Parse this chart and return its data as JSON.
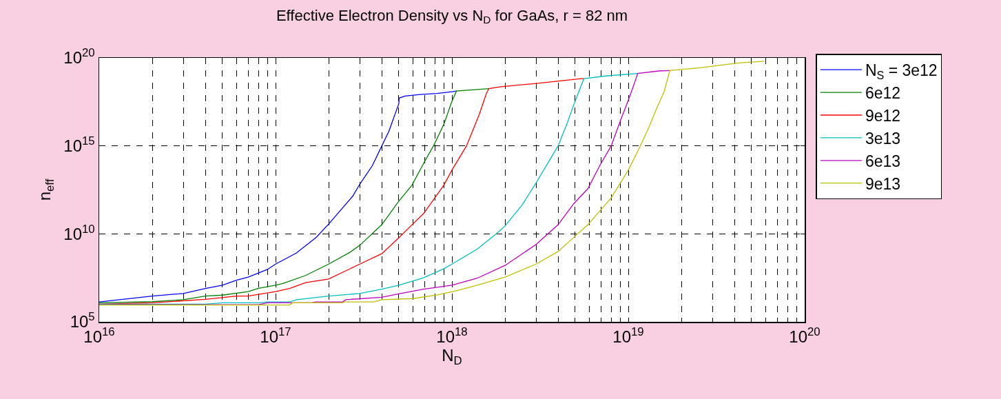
{
  "chart_data": {
    "type": "line",
    "title": "Effective Electron Density vs N$_{D}$ for GaAs, r = 82 nm",
    "xlabel": "N$_{D}$",
    "ylabel": "n$_{eff}$",
    "log": "xy",
    "grid": true,
    "legend": "right",
    "line_style": "solid",
    "marker": "none",
    "xlim": [
      1e+16,
      1e+20
    ],
    "ylim": [
      100000.0,
      1e+20
    ],
    "xticks": [
      {
        "value": 1e+16,
        "label": "10$^{16}$"
      },
      {
        "value": 2e+16,
        "label": null
      },
      {
        "value": 3e+16,
        "label": null
      },
      {
        "value": 4e+16,
        "label": null
      },
      {
        "value": 5e+16,
        "label": null
      },
      {
        "value": 6e+16,
        "label": null
      },
      {
        "value": 7e+16,
        "label": null
      },
      {
        "value": 8e+16,
        "label": null
      },
      {
        "value": 9e+16,
        "label": null
      },
      {
        "value": 1e+17,
        "label": "10$^{17}$"
      },
      {
        "value": 2e+17,
        "label": null
      },
      {
        "value": 3e+17,
        "label": null
      },
      {
        "value": 4e+17,
        "label": null
      },
      {
        "value": 5e+17,
        "label": null
      },
      {
        "value": 6e+17,
        "label": null
      },
      {
        "value": 7e+17,
        "label": null
      },
      {
        "value": 8e+17,
        "label": null
      },
      {
        "value": 9e+17,
        "label": null
      },
      {
        "value": 1e+18,
        "label": "10$^{18}$"
      },
      {
        "value": 2e+18,
        "label": null
      },
      {
        "value": 3e+18,
        "label": null
      },
      {
        "value": 4e+18,
        "label": null
      },
      {
        "value": 5e+18,
        "label": null
      },
      {
        "value": 6e+18,
        "label": null
      },
      {
        "value": 7e+18,
        "label": null
      },
      {
        "value": 8e+18,
        "label": null
      },
      {
        "value": 9e+18,
        "label": null
      },
      {
        "value": 1e+19,
        "label": "10$^{19}$"
      },
      {
        "value": 2e+19,
        "label": null
      },
      {
        "value": 3e+19,
        "label": null
      },
      {
        "value": 4e+19,
        "label": null
      },
      {
        "value": 5e+19,
        "label": null
      },
      {
        "value": 6e+19,
        "label": null
      },
      {
        "value": 7e+19,
        "label": null
      },
      {
        "value": 8e+19,
        "label": null
      },
      {
        "value": 9e+19,
        "label": null
      },
      {
        "value": 1e+20,
        "label": "10$^{20}$"
      }
    ],
    "yticks": [
      {
        "value": 100000.0,
        "label": "10$^{5}$"
      },
      {
        "value": 10000000000.0,
        "label": "10$^{10}$"
      },
      {
        "value": 1000000000000000.0,
        "label": "10$^{15}$"
      },
      {
        "value": 1e+20,
        "label": "10$^{20}$"
      }
    ],
    "series": [
      {
        "name": "N$_{S}$ = 3e12",
        "color": "#0000ff",
        "x": [
          1e+16,
          2e+16,
          3e+16,
          4e+16,
          5e+16,
          6e+16,
          7e+16,
          9e+16,
          1e+17,
          1.31e+17,
          1.7e+17,
          2e+17,
          2.74e+17,
          3e+17,
          3.54e+17,
          4e+17,
          4.39e+17,
          5e+17,
          5.02e+17,
          5.42e+17,
          6.6e+17,
          8.2e+17,
          1e+18,
          1.06e+18
        ],
        "values": [
          1350000.0,
          2900000.0,
          4100000.0,
          7800000.0,
          12000000.0,
          23000000.0,
          35000000.0,
          95000000.0,
          190000000.0,
          810000000.0,
          6300000000.0,
          36000000000.0,
          1400000000000.0,
          6500000000000.0,
          76000000000000.0,
          980000000000000.0,
          6800000000000000.0,
          2.5e+17,
          5.2e+17,
          6.8e+17,
          8.3e+17,
          9.5e+17,
          1.2e+18,
          1.3e+18
        ]
      },
      {
        "name": "6e12",
        "color": "#008000",
        "x": [
          1e+16,
          2e+16,
          3e+16,
          4e+16,
          5e+16,
          7e+16,
          8e+16,
          1e+17,
          1.1e+17,
          1.48e+17,
          2e+17,
          2.65e+17,
          3e+17,
          4e+17,
          5e+17,
          5.94e+17,
          6.9e+17,
          7.9e+17,
          9e+17,
          1e+18,
          1.06e+18,
          1.62e+18
        ],
        "values": [
          1200000.0,
          1400000.0,
          1800000.0,
          2900000.0,
          3300000.0,
          5200000.0,
          8100000.0,
          12000000.0,
          15000000.0,
          43000000.0,
          190000000.0,
          910000000.0,
          2200000000.0,
          33000000000.0,
          720000000000.0,
          5900000000000.0,
          100000000000000.0,
          1100000000000000.0,
          1.7e+16,
          3.4e+17,
          1.3e+18,
          1.8e+18
        ]
      },
      {
        "name": "9e12",
        "color": "#ff0000",
        "x": [
          1e+16,
          2e+16,
          4e+16,
          6e+16,
          7e+16,
          1e+17,
          1.2e+17,
          1.48e+17,
          2e+17,
          3e+17,
          4e+17,
          5e+17,
          5.94e+17,
          6.9e+17,
          9e+17,
          1e+18,
          1.21e+18,
          1.43e+18,
          1.57e+18,
          1.62e+18,
          1.89e+18,
          3e+18,
          5.4e+18,
          5.6e+18
        ],
        "values": [
          1000000.0,
          1200000.0,
          1900000.0,
          2900000.0,
          2900000.0,
          5200000.0,
          7800000.0,
          17000000.0,
          27000000.0,
          190000000.0,
          740000000.0,
          6000000000.0,
          33000000000.0,
          140000000000.0,
          5900000000000.0,
          42000000000000.0,
          1000000000000000.0,
          6.3e+16,
          9.8e+17,
          1.8e+18,
          2.3e+18,
          3.5e+18,
          6.6e+18,
          6.6e+18
        ]
      },
      {
        "name": "3e13",
        "color": "#00bfbf",
        "x": [
          1e+16,
          4e+16,
          5e+16,
          8e+16,
          9e+16,
          1.2e+17,
          1.32e+17,
          2e+17,
          3e+17,
          4e+17,
          5e+17,
          6.9e+17,
          9e+17,
          1e+18,
          1.39e+18,
          1.78e+18,
          2e+18,
          2.5e+18,
          3e+18,
          4e+18,
          4.5e+18,
          4.9e+18,
          5.2e+18,
          5.6e+18,
          7.6e+18,
          1.13e+19
        ],
        "values": [
          1000000.0,
          1000000.0,
          1200000.0,
          1200000.0,
          1350000.0,
          1350000.0,
          1800000.0,
          2900000.0,
          4100000.0,
          7100000.0,
          12000000.0,
          32000000.0,
          105000000.0,
          190000000.0,
          1350000000.0,
          9800000000.0,
          28000000000.0,
          440000000000.0,
          7900000000000.0,
          1000000000000000.0,
          1.9e+16,
          2.1e+17,
          9.8e+17,
          6.6e+18,
          9.6e+18,
          1.3e+19
        ]
      },
      {
        "name": "6e13",
        "color": "#bf00bf",
        "x": [
          1e+16,
          8e+16,
          9e+16,
          1.6e+17,
          1.7e+17,
          2.4e+17,
          2.5e+17,
          4e+17,
          5e+17,
          6.9e+17,
          1e+18,
          1.39e+18,
          2e+18,
          3e+18,
          4e+18,
          4.9e+18,
          5.9e+18,
          6.9e+18,
          8e+18,
          9.1e+18,
          1e+19,
          1.08e+19,
          1.13e+19,
          1.48e+19,
          1.72e+19
        ],
        "values": [
          950000.0,
          950000.0,
          1200000.0,
          1200000.0,
          1350000.0,
          1350000.0,
          1800000.0,
          2500000.0,
          3900000.0,
          7100000.0,
          12000000.0,
          30000000.0,
          160000000.0,
          2500000000.0,
          33000000000.0,
          510000000000.0,
          3700000000000.0,
          78000000000000.0,
          1000000000000000.0,
          3.4e+16,
          3.9e+17,
          3.3e+18,
          1.3e+19,
          1.8e+19,
          1.9e+19
        ]
      },
      {
        "name": "9e13",
        "color": "#bfbf00",
        "x": [
          1e+16,
          1.2e+17,
          1.25e+17,
          2.4e+17,
          2.45e+17,
          3.6e+17,
          4e+17,
          6e+17,
          8.2e+17,
          1.07e+18,
          1.39e+18,
          2e+18,
          3e+18,
          4e+18,
          4.9e+18,
          5.9e+18,
          8e+18,
          1e+19,
          1.17e+19,
          1.32e+19,
          1.43e+19,
          1.6e+19,
          1.72e+19,
          2.6e+19,
          4.2e+19,
          5.9e+19
        ],
        "values": [
          900000.0,
          900000.0,
          1200000.0,
          1200000.0,
          1350000.0,
          1350000.0,
          1800000.0,
          2100000.0,
          3300000.0,
          6000000.0,
          12000000.0,
          35000000.0,
          190000000.0,
          1000000000.0,
          6200000000.0,
          33000000000.0,
          1100000000000.0,
          42000000000000.0,
          1000000000000000.0,
          1.4e+16,
          1e+17,
          1.3e+18,
          1.9e+19,
          2.8e+19,
          5.1e+19,
          6.5e+19
        ]
      }
    ]
  }
}
